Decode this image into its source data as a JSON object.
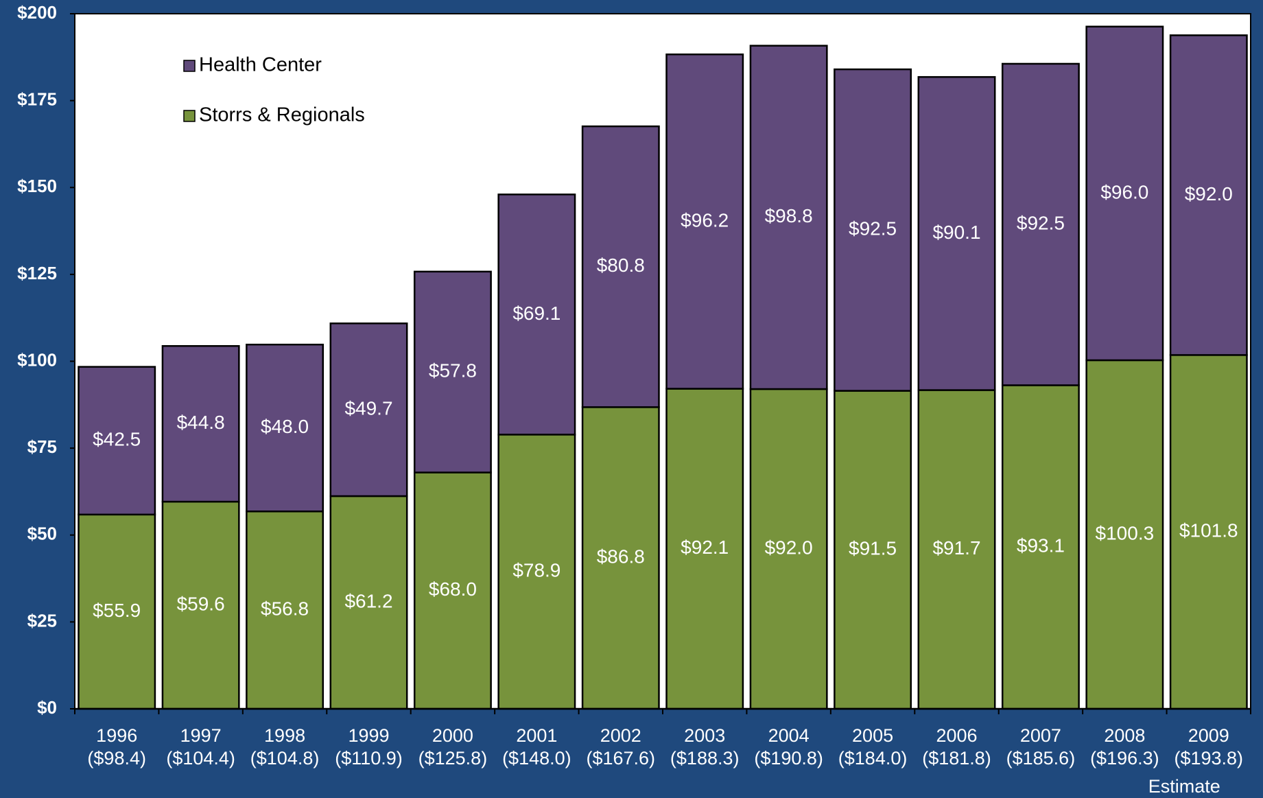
{
  "chart_data": {
    "type": "stacked_bar",
    "categories": [
      "1996",
      "1997",
      "1998",
      "1999",
      "2000",
      "2001",
      "2002",
      "2003",
      "2004",
      "2005",
      "2006",
      "2007",
      "2008",
      "2009"
    ],
    "category_sublabels": [
      "($98.4)",
      "($104.4)",
      "($104.8)",
      "($110.9)",
      "($125.8)",
      "($148.0)",
      "($167.6)",
      "($188.3)",
      "($190.8)",
      "($184.0)",
      "($181.8)",
      "($185.6)",
      "($196.3)",
      "($193.8)"
    ],
    "annotations": [
      "Estimate"
    ],
    "series": [
      {
        "name": "Storrs & Regionals",
        "color": "#77933c",
        "values": [
          55.9,
          59.6,
          56.8,
          61.2,
          68.0,
          78.9,
          86.8,
          92.1,
          92.0,
          91.5,
          91.7,
          93.1,
          100.3,
          101.8
        ],
        "value_labels": [
          "$55.9",
          "$59.6",
          "$56.8",
          "$61.2",
          "$68.0",
          "$78.9",
          "$86.8",
          "$92.1",
          "$92.0",
          "$91.5",
          "$91.7",
          "$93.1",
          "$100.3",
          "$101.8"
        ]
      },
      {
        "name": "Health Center",
        "color": "#604a7b",
        "values": [
          42.5,
          44.8,
          48.0,
          49.7,
          57.8,
          69.1,
          80.8,
          96.2,
          98.8,
          92.5,
          90.1,
          92.5,
          96.0,
          92.0
        ],
        "value_labels": [
          "$42.5",
          "$44.8",
          "$48.0",
          "$49.7",
          "$57.8",
          "$69.1",
          "$80.8",
          "$96.2",
          "$98.8",
          "$92.5",
          "$90.1",
          "$92.5",
          "$96.0",
          "$92.0"
        ]
      }
    ],
    "ylim": [
      0,
      200
    ],
    "yticks": [
      {
        "value": 0,
        "label": "$0"
      },
      {
        "value": 25,
        "label": "$25"
      },
      {
        "value": 50,
        "label": "$50"
      },
      {
        "value": 75,
        "label": "$75"
      },
      {
        "value": 100,
        "label": "$100"
      },
      {
        "value": 125,
        "label": "$125"
      },
      {
        "value": 150,
        "label": "$150"
      },
      {
        "value": 175,
        "label": "$175"
      },
      {
        "value": 200,
        "label": "$200"
      }
    ],
    "grid": false,
    "legend": "upper left"
  }
}
